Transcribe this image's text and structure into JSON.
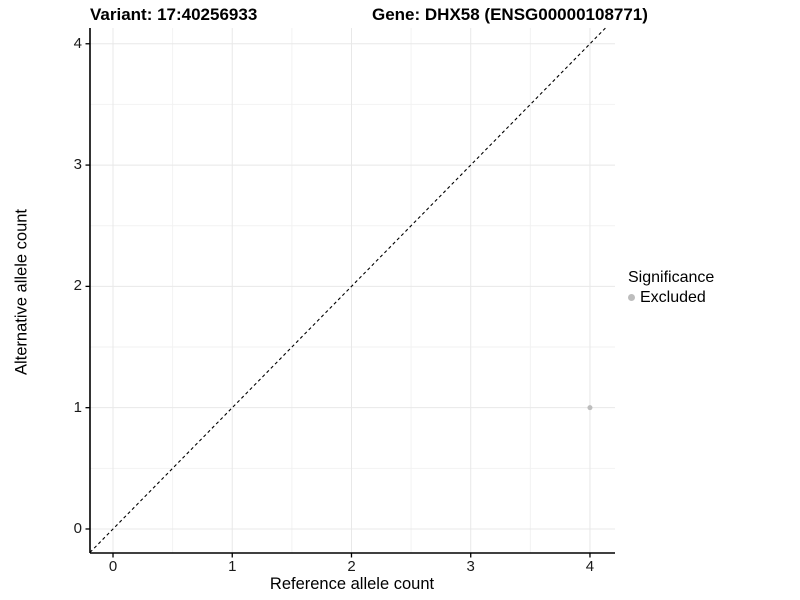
{
  "titles": {
    "variant": "Variant: 17:40256933",
    "gene": "Gene: DHX58 (ENSG00000108771)"
  },
  "chart_data": {
    "type": "scatter",
    "xlabel": "Reference allele count",
    "ylabel": "Alternative allele count",
    "xlim": [
      -0.193,
      4.21
    ],
    "ylim": [
      -0.198,
      4.13
    ],
    "x_ticks": [
      0,
      1,
      2,
      3,
      4
    ],
    "y_ticks": [
      0,
      1,
      2,
      3,
      4
    ],
    "x_minor_ticks": [
      0.5,
      1.5,
      2.5,
      3.5
    ],
    "y_minor_ticks": [
      0.5,
      1.5,
      2.5,
      3.5
    ],
    "grid": {
      "on": true,
      "major_color": "#e8e8e8",
      "minor_color": "#f2f2f2"
    },
    "background": "#ffffff",
    "axis_line_color": "#000000",
    "points": [
      {
        "x": 4,
        "y": 1,
        "significance": "Excluded",
        "color": "#bdbdbd"
      }
    ],
    "abline": {
      "slope": 1,
      "intercept": 0,
      "style": "dashed",
      "color": "#000000"
    },
    "legend": {
      "position": "right",
      "title": "Significance",
      "items": [
        {
          "label": "Excluded",
          "color": "#bdbdbd"
        }
      ]
    }
  }
}
